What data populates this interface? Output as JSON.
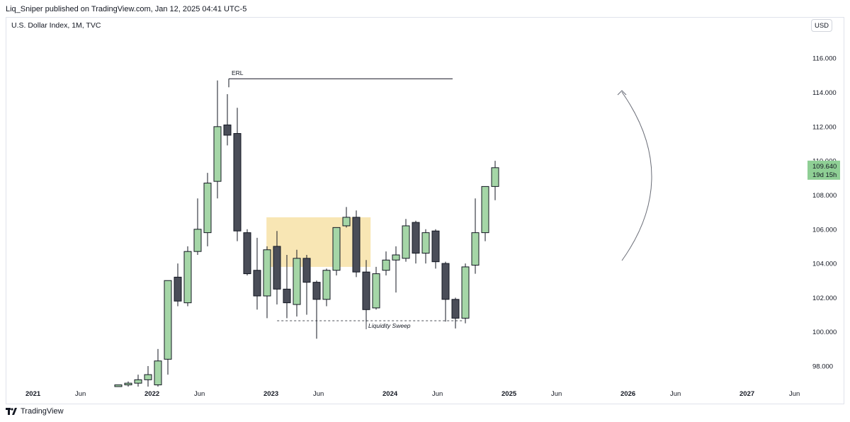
{
  "header": {
    "published_by": "Liq_Sniper published on TradingView.com, Jan 12, 2025 04:41 UTC-5"
  },
  "symbol_line": "U.S. Dollar Index, 1M, TVC",
  "currency_button": "USD",
  "footer_brand": "TradingView",
  "colors": {
    "bull": "#a5d6a7",
    "bear": "#4a4d58",
    "zone": "#f8e6b4",
    "price_tag": "#8fcf95",
    "border": "#131722"
  },
  "chart_data": {
    "type": "candlestick",
    "ylim": [
      96.8,
      117.5
    ],
    "y_ticks": [
      "98.000",
      "100.000",
      "102.000",
      "104.000",
      "106.000",
      "108.000",
      "110.000",
      "112.000",
      "114.000",
      "116.000"
    ],
    "y_tick_values": [
      98,
      100,
      102,
      104,
      106,
      108,
      110,
      112,
      114,
      116
    ],
    "x_labels": [
      {
        "text": "2021",
        "month_index": 0,
        "year": true
      },
      {
        "text": "Jun",
        "month_index": 5,
        "year": false
      },
      {
        "text": "2022",
        "month_index": 12,
        "year": true
      },
      {
        "text": "Jun",
        "month_index": 17,
        "year": false
      },
      {
        "text": "2023",
        "month_index": 24,
        "year": true
      },
      {
        "text": "Jun",
        "month_index": 29,
        "year": false
      },
      {
        "text": "2024",
        "month_index": 36,
        "year": true
      },
      {
        "text": "Jun",
        "month_index": 41,
        "year": false
      },
      {
        "text": "2025",
        "month_index": 48,
        "year": true
      },
      {
        "text": "Jun",
        "month_index": 53,
        "year": false
      },
      {
        "text": "2026",
        "month_index": 60,
        "year": true
      },
      {
        "text": "Jun",
        "month_index": 65,
        "year": false
      },
      {
        "text": "2027",
        "month_index": 72,
        "year": true
      },
      {
        "text": "Jun",
        "month_index": 77,
        "year": false
      }
    ],
    "candles": [
      {
        "m": "2021-10",
        "o": 96.8,
        "h": 96.9,
        "l": 96.8,
        "c": 96.9
      },
      {
        "m": "2021-11",
        "o": 96.9,
        "h": 97.1,
        "l": 96.8,
        "c": 97.0
      },
      {
        "m": "2021-12",
        "o": 97.0,
        "h": 97.5,
        "l": 96.8,
        "c": 97.2
      },
      {
        "m": "2022-01",
        "o": 97.2,
        "h": 98.0,
        "l": 96.8,
        "c": 97.5
      },
      {
        "m": "2022-02",
        "o": 96.9,
        "h": 99.0,
        "l": 96.8,
        "c": 98.3
      },
      {
        "m": "2022-03",
        "o": 98.4,
        "h": 103.0,
        "l": 97.5,
        "c": 103.0
      },
      {
        "m": "2022-04",
        "o": 103.2,
        "h": 104.0,
        "l": 101.5,
        "c": 101.8
      },
      {
        "m": "2022-05",
        "o": 101.7,
        "h": 105.0,
        "l": 101.5,
        "c": 104.7
      },
      {
        "m": "2022-06",
        "o": 104.7,
        "h": 107.8,
        "l": 104.5,
        "c": 106.0
      },
      {
        "m": "2022-07",
        "o": 105.8,
        "h": 109.3,
        "l": 105.0,
        "c": 108.7
      },
      {
        "m": "2022-08",
        "o": 108.8,
        "h": 114.7,
        "l": 107.8,
        "c": 112.0
      },
      {
        "m": "2022-09",
        "o": 112.1,
        "h": 113.9,
        "l": 110.9,
        "c": 111.5
      },
      {
        "m": "2022-10",
        "o": 111.6,
        "h": 113.1,
        "l": 105.3,
        "c": 105.9
      },
      {
        "m": "2022-11",
        "o": 105.8,
        "h": 106.0,
        "l": 103.3,
        "c": 103.4
      },
      {
        "m": "2022-12",
        "o": 103.6,
        "h": 105.5,
        "l": 101.3,
        "c": 102.1
      },
      {
        "m": "2023-01",
        "o": 102.1,
        "h": 105.0,
        "l": 100.8,
        "c": 104.8
      },
      {
        "m": "2023-02",
        "o": 105.0,
        "h": 105.9,
        "l": 101.6,
        "c": 102.5
      },
      {
        "m": "2023-03",
        "o": 102.5,
        "h": 104.5,
        "l": 100.8,
        "c": 101.7
      },
      {
        "m": "2023-04",
        "o": 101.6,
        "h": 104.8,
        "l": 100.9,
        "c": 104.3
      },
      {
        "m": "2023-05",
        "o": 104.3,
        "h": 104.5,
        "l": 101.0,
        "c": 102.9
      },
      {
        "m": "2023-06",
        "o": 102.9,
        "h": 103.0,
        "l": 99.6,
        "c": 101.9
      },
      {
        "m": "2023-07",
        "o": 101.9,
        "h": 103.7,
        "l": 101.5,
        "c": 103.6
      },
      {
        "m": "2023-08",
        "o": 103.6,
        "h": 106.1,
        "l": 103.3,
        "c": 106.1
      },
      {
        "m": "2023-09",
        "o": 106.2,
        "h": 107.3,
        "l": 106.1,
        "c": 106.7
      },
      {
        "m": "2023-10",
        "o": 106.7,
        "h": 107.1,
        "l": 103.2,
        "c": 103.5
      },
      {
        "m": "2023-11",
        "o": 103.5,
        "h": 104.2,
        "l": 100.6,
        "c": 101.3
      },
      {
        "m": "2023-12",
        "o": 101.4,
        "h": 103.8,
        "l": 101.3,
        "c": 103.4
      },
      {
        "m": "2024-01",
        "o": 103.6,
        "h": 104.7,
        "l": 103.3,
        "c": 104.2
      },
      {
        "m": "2024-02",
        "o": 104.2,
        "h": 105.0,
        "l": 102.3,
        "c": 104.5
      },
      {
        "m": "2024-03",
        "o": 104.3,
        "h": 106.6,
        "l": 104.1,
        "c": 106.2
      },
      {
        "m": "2024-04",
        "o": 106.4,
        "h": 106.5,
        "l": 104.0,
        "c": 104.6
      },
      {
        "m": "2024-05",
        "o": 104.6,
        "h": 106.0,
        "l": 104.0,
        "c": 105.8
      },
      {
        "m": "2024-06",
        "o": 105.9,
        "h": 106.0,
        "l": 103.7,
        "c": 104.1
      },
      {
        "m": "2024-07",
        "o": 104.0,
        "h": 104.1,
        "l": 100.6,
        "c": 101.9
      },
      {
        "m": "2024-08",
        "o": 101.9,
        "h": 102.0,
        "l": 100.2,
        "c": 100.8
      },
      {
        "m": "2024-09",
        "o": 100.8,
        "h": 104.0,
        "l": 100.5,
        "c": 103.8
      },
      {
        "m": "2024-10",
        "o": 103.9,
        "h": 107.8,
        "l": 103.4,
        "c": 105.8
      },
      {
        "m": "2024-11",
        "o": 105.8,
        "h": 108.5,
        "l": 105.3,
        "c": 108.5
      },
      {
        "m": "2024-12",
        "o": 108.5,
        "h": 110.0,
        "l": 107.7,
        "c": 109.6
      }
    ],
    "first_candle_month_index": 9,
    "annotations": {
      "erl": {
        "text": "ERL",
        "price": 114.8,
        "from_month": 11.5,
        "to_month": 33.5
      },
      "liquidity_sweep": {
        "text": "Liquidity Sweep",
        "price": 100.65,
        "from_month": 22.3,
        "to_month": 34.5
      },
      "zone": {
        "from_month": 24.3,
        "to_month": 34.8,
        "top": 106.7,
        "bottom": 103.8
      }
    },
    "last_price": {
      "value": "109.640",
      "countdown": "19d 15h",
      "price": 109.64
    }
  }
}
